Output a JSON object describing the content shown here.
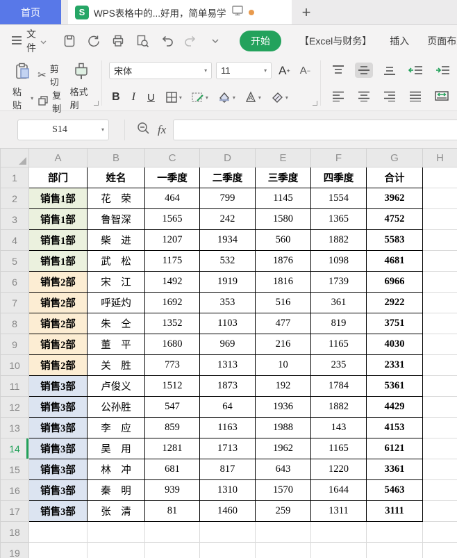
{
  "tab_bar": {
    "home_label": "首页",
    "doc_title": "WPS表格中的...好用，简单易学",
    "new_tab_label": "+"
  },
  "menu_bar": {
    "file_label": "文件",
    "ribbon_tabs": [
      {
        "label": "开始",
        "active": true
      },
      {
        "label": "【Excel与财务】",
        "active": false
      },
      {
        "label": "插入",
        "active": false
      },
      {
        "label": "页面布局",
        "active": false
      }
    ]
  },
  "toolbar": {
    "paste_label": "粘贴",
    "cut_label": "剪切",
    "copy_label": "复制",
    "format_painter_label": "格式刷",
    "font_name": "宋体",
    "font_size": "11",
    "bold_label": "B",
    "italic_label": "I",
    "underline_label": "U"
  },
  "formula_bar": {
    "name_box_value": "S14",
    "fx_label": "fx",
    "formula_value": ""
  },
  "icons": [
    "wps-sheet-icon",
    "presentation-icon",
    "unsaved-dot",
    "hamburger-icon",
    "save-icon",
    "export-icon",
    "print-icon",
    "print-preview-icon",
    "undo-icon",
    "redo-icon",
    "chevron-down-icon",
    "increase-font-icon",
    "decrease-font-icon",
    "borders-icon",
    "draw-border-icon",
    "fill-color-icon",
    "font-color-icon",
    "eraser-icon",
    "align-top-icon",
    "align-middle-icon",
    "align-bottom-icon",
    "decrease-indent-icon",
    "increase-indent-icon",
    "align-left-icon",
    "align-center-icon",
    "align-right-icon",
    "justify-icon",
    "merge-center-icon",
    "zoom-out-icon",
    "fx-icon",
    "select-all-corner"
  ],
  "colors": {
    "home_tab_blue": "#5878E8",
    "wps_green": "#26A666",
    "ribbon_active_green": "#23A25C",
    "unsaved_dot_orange": "#E89A4D",
    "selection_green": "#21A159",
    "dept1_fill": "#EBF1DE",
    "dept2_fill": "#FCEDD3",
    "dept3_fill": "#DCE4F1"
  },
  "sheet": {
    "column_headers": [
      "A",
      "B",
      "C",
      "D",
      "E",
      "F",
      "G",
      "H"
    ],
    "data_column_letters": [
      "A",
      "B",
      "C",
      "D",
      "E",
      "F",
      "G"
    ],
    "visible_row_count": 19,
    "selected_row": 14,
    "header_row": [
      "部门",
      "姓名",
      "一季度",
      "二季度",
      "三季度",
      "四季度",
      "合计"
    ],
    "group_colors": {
      "1": "#EBF1DE",
      "2": "#FCEDD3",
      "3": "#DCE4F1"
    },
    "rows": [
      {
        "dept": "销售1部",
        "name": "花　荣",
        "q1": 464,
        "q2": 799,
        "q3": 1145,
        "q4": 1554,
        "total": 3962,
        "group": 1
      },
      {
        "dept": "销售1部",
        "name": "鲁智深",
        "q1": 1565,
        "q2": 242,
        "q3": 1580,
        "q4": 1365,
        "total": 4752,
        "group": 1
      },
      {
        "dept": "销售1部",
        "name": "柴　进",
        "q1": 1207,
        "q2": 1934,
        "q3": 560,
        "q4": 1882,
        "total": 5583,
        "group": 1
      },
      {
        "dept": "销售1部",
        "name": "武　松",
        "q1": 1175,
        "q2": 532,
        "q3": 1876,
        "q4": 1098,
        "total": 4681,
        "group": 1
      },
      {
        "dept": "销售2部",
        "name": "宋　江",
        "q1": 1492,
        "q2": 1919,
        "q3": 1816,
        "q4": 1739,
        "total": 6966,
        "group": 2
      },
      {
        "dept": "销售2部",
        "name": "呼延灼",
        "q1": 1692,
        "q2": 353,
        "q3": 516,
        "q4": 361,
        "total": 2922,
        "group": 2
      },
      {
        "dept": "销售2部",
        "name": "朱　仝",
        "q1": 1352,
        "q2": 1103,
        "q3": 477,
        "q4": 819,
        "total": 3751,
        "group": 2
      },
      {
        "dept": "销售2部",
        "name": "董　平",
        "q1": 1680,
        "q2": 969,
        "q3": 216,
        "q4": 1165,
        "total": 4030,
        "group": 2
      },
      {
        "dept": "销售2部",
        "name": "关　胜",
        "q1": 773,
        "q2": 1313,
        "q3": 10,
        "q4": 235,
        "total": 2331,
        "group": 2
      },
      {
        "dept": "销售3部",
        "name": "卢俊义",
        "q1": 1512,
        "q2": 1873,
        "q3": 192,
        "q4": 1784,
        "total": 5361,
        "group": 3
      },
      {
        "dept": "销售3部",
        "name": "公孙胜",
        "q1": 547,
        "q2": 64,
        "q3": 1936,
        "q4": 1882,
        "total": 4429,
        "group": 3
      },
      {
        "dept": "销售3部",
        "name": "李　应",
        "q1": 859,
        "q2": 1163,
        "q3": 1988,
        "q4": 143,
        "total": 4153,
        "group": 3
      },
      {
        "dept": "销售3部",
        "name": "吴　用",
        "q1": 1281,
        "q2": 1713,
        "q3": 1962,
        "q4": 1165,
        "total": 6121,
        "group": 3
      },
      {
        "dept": "销售3部",
        "name": "林　冲",
        "q1": 681,
        "q2": 817,
        "q3": 643,
        "q4": 1220,
        "total": 3361,
        "group": 3
      },
      {
        "dept": "销售3部",
        "name": "秦　明",
        "q1": 939,
        "q2": 1310,
        "q3": 1570,
        "q4": 1644,
        "total": 5463,
        "group": 3
      },
      {
        "dept": "销售3部",
        "name": "张　清",
        "q1": 81,
        "q2": 1460,
        "q3": 259,
        "q4": 1311,
        "total": 3111,
        "group": 3
      }
    ]
  }
}
